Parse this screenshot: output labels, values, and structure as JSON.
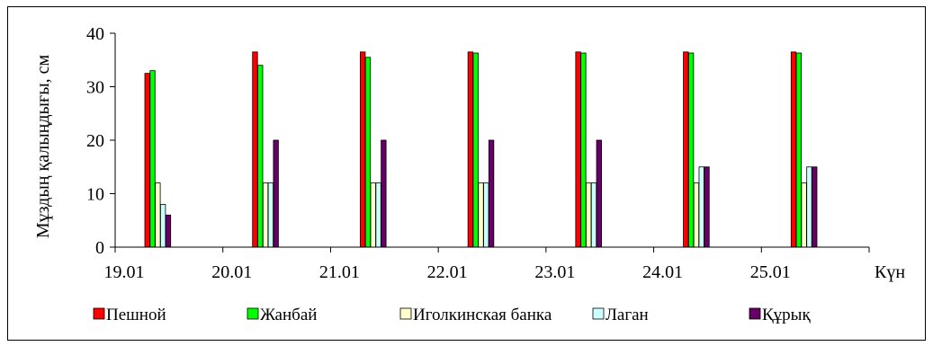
{
  "chart_data": {
    "type": "bar",
    "title": "",
    "xlabel": "Күн",
    "ylabel": "Мұздың қалыңдығы, см",
    "ylim": [
      0,
      40
    ],
    "yticks": [
      "0",
      "10",
      "20",
      "30",
      "40"
    ],
    "grid": false,
    "legend_position": "bottom",
    "categories": [
      "19.01",
      "20.01",
      "21.01",
      "22.01",
      "23.01",
      "24.01",
      "25.01"
    ],
    "series": [
      {
        "name": "Пешной",
        "color": "#ff0000",
        "values": [
          32.5,
          36.5,
          36.5,
          36.5,
          36.5,
          36.5,
          36.5
        ]
      },
      {
        "name": "Жанбай",
        "color": "#00ff00",
        "values": [
          33,
          34,
          35.5,
          36.3,
          36.3,
          36.3,
          36.3
        ]
      },
      {
        "name": "Иголкинская банка",
        "color": "#ffffcc",
        "values": [
          12,
          12,
          12,
          12,
          12,
          12,
          12
        ]
      },
      {
        "name": "Лаган",
        "color": "#ccffff",
        "values": [
          8,
          12,
          12,
          12,
          12,
          15,
          15
        ]
      },
      {
        "name": "Құрық",
        "color": "#660066",
        "values": [
          6,
          20,
          20,
          20,
          20,
          15,
          15
        ]
      }
    ]
  }
}
